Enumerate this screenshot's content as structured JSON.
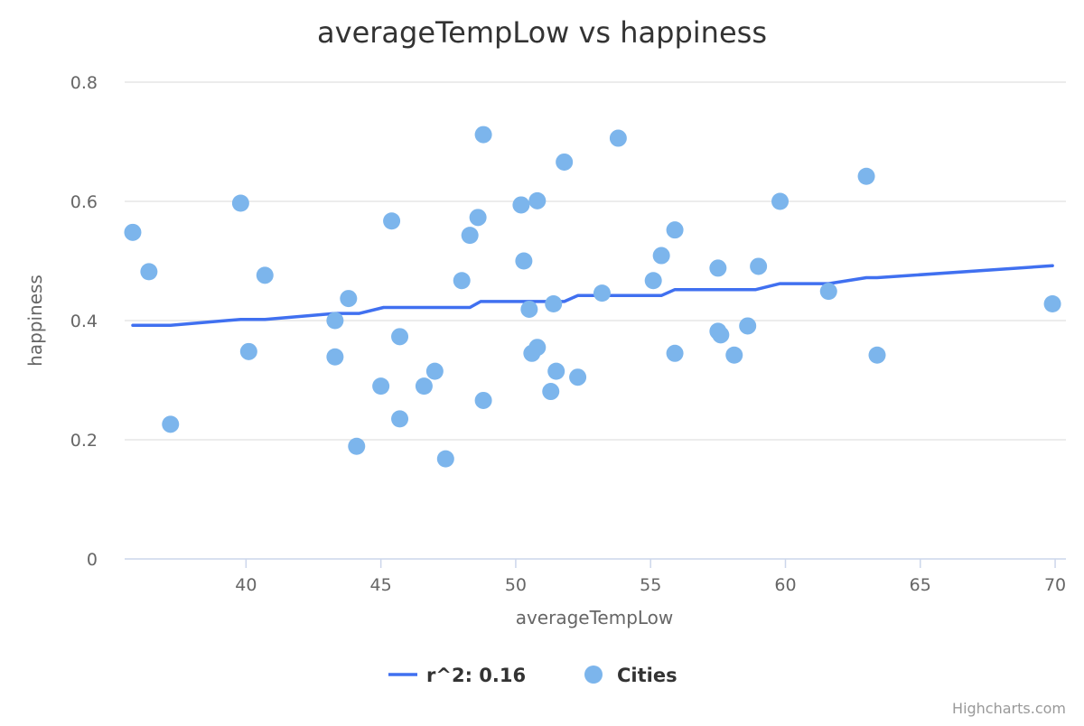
{
  "chart_data": {
    "type": "scatter",
    "title": "averageTempLow vs happiness",
    "xlabel": "averageTempLow",
    "ylabel": "happiness",
    "xlim": [
      35.5,
      70.4
    ],
    "ylim": [
      0,
      0.8
    ],
    "xticks": [
      40,
      45,
      50,
      55,
      60,
      65,
      70
    ],
    "yticks": [
      0,
      0.2,
      0.4,
      0.6,
      0.8
    ],
    "xtick_labels": [
      "40",
      "45",
      "50",
      "55",
      "60",
      "65",
      "70"
    ],
    "ytick_labels": [
      "0",
      "0.2",
      "0.4",
      "0.6",
      "0.8"
    ],
    "grid": true,
    "legend_position": "bottom-center",
    "series": [
      {
        "name": "r^2: 0.16",
        "type": "line",
        "color": "#4070f0",
        "x": [
          35.8,
          37.2,
          39.8,
          40.7,
          43.3,
          44.2,
          45.1,
          48.3,
          48.7,
          51.8,
          52.3,
          55.4,
          55.9,
          58.9,
          59.8,
          61.6,
          63.0,
          63.4,
          69.9
        ],
        "y": [
          0.392,
          0.392,
          0.402,
          0.402,
          0.412,
          0.412,
          0.422,
          0.422,
          0.432,
          0.432,
          0.442,
          0.442,
          0.452,
          0.452,
          0.462,
          0.462,
          0.472,
          0.472,
          0.492
        ]
      },
      {
        "name": "Cities",
        "type": "scatter",
        "color": "#7cb5ec",
        "points": [
          [
            35.8,
            0.548
          ],
          [
            36.4,
            0.482
          ],
          [
            37.2,
            0.226
          ],
          [
            39.8,
            0.597
          ],
          [
            40.1,
            0.348
          ],
          [
            40.7,
            0.476
          ],
          [
            43.3,
            0.4
          ],
          [
            43.3,
            0.339
          ],
          [
            43.8,
            0.437
          ],
          [
            44.1,
            0.189
          ],
          [
            45.0,
            0.29
          ],
          [
            45.4,
            0.567
          ],
          [
            45.7,
            0.373
          ],
          [
            45.7,
            0.235
          ],
          [
            46.6,
            0.29
          ],
          [
            47.0,
            0.315
          ],
          [
            47.4,
            0.168
          ],
          [
            48.0,
            0.467
          ],
          [
            48.3,
            0.543
          ],
          [
            48.6,
            0.573
          ],
          [
            48.8,
            0.712
          ],
          [
            48.8,
            0.266
          ],
          [
            50.2,
            0.594
          ],
          [
            50.3,
            0.5
          ],
          [
            50.5,
            0.419
          ],
          [
            50.6,
            0.345
          ],
          [
            50.8,
            0.601
          ],
          [
            50.8,
            0.355
          ],
          [
            51.3,
            0.281
          ],
          [
            51.4,
            0.428
          ],
          [
            51.5,
            0.315
          ],
          [
            51.8,
            0.666
          ],
          [
            52.3,
            0.305
          ],
          [
            53.2,
            0.446
          ],
          [
            53.8,
            0.706
          ],
          [
            55.1,
            0.467
          ],
          [
            55.4,
            0.509
          ],
          [
            55.9,
            0.552
          ],
          [
            55.9,
            0.345
          ],
          [
            57.5,
            0.488
          ],
          [
            57.5,
            0.382
          ],
          [
            57.6,
            0.376
          ],
          [
            58.1,
            0.342
          ],
          [
            58.6,
            0.391
          ],
          [
            59.0,
            0.491
          ],
          [
            59.8,
            0.6
          ],
          [
            61.6,
            0.449
          ],
          [
            63.0,
            0.642
          ],
          [
            63.4,
            0.342
          ],
          [
            69.9,
            0.428
          ]
        ]
      }
    ]
  },
  "credits": "Highcharts.com"
}
